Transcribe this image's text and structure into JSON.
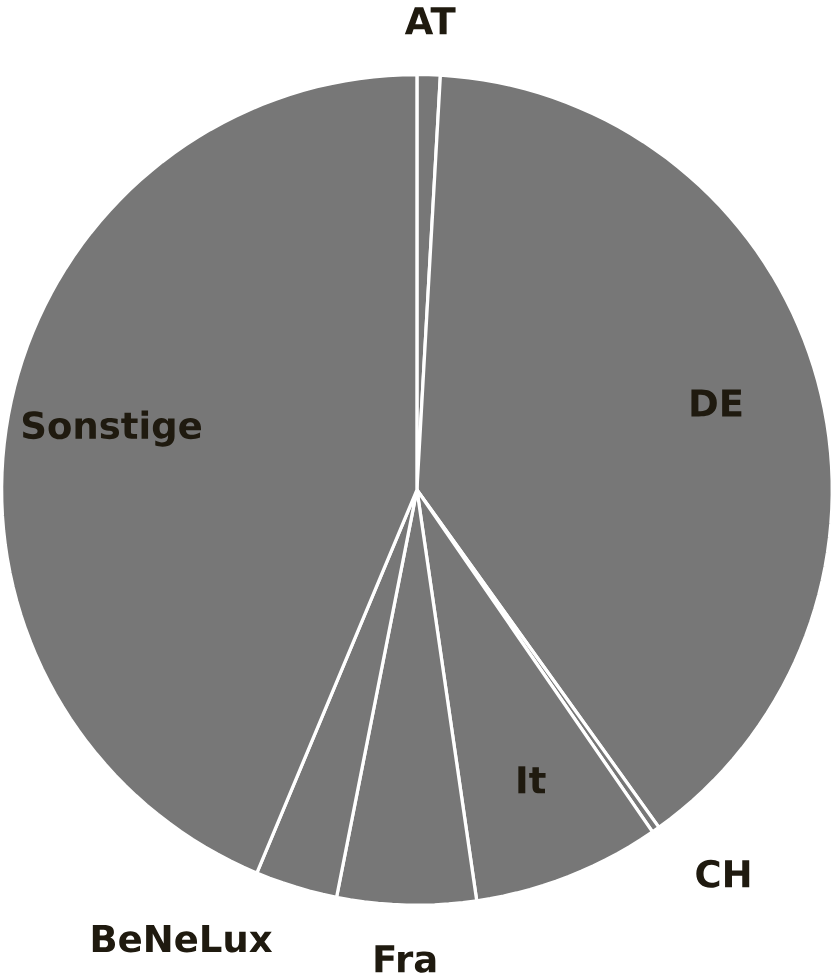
{
  "chart_data": {
    "type": "pie",
    "categories": [
      "AT",
      "DE",
      "CH",
      "It",
      "Fra",
      "BeNeLux",
      "Sonstige"
    ],
    "values": [
      0.9,
      39.2,
      0.3,
      7.3,
      5.4,
      3.2,
      43.7
    ],
    "colors": [
      "#777777",
      "#777777",
      "#777777",
      "#777777",
      "#777777",
      "#777777",
      "#777777"
    ]
  }
}
